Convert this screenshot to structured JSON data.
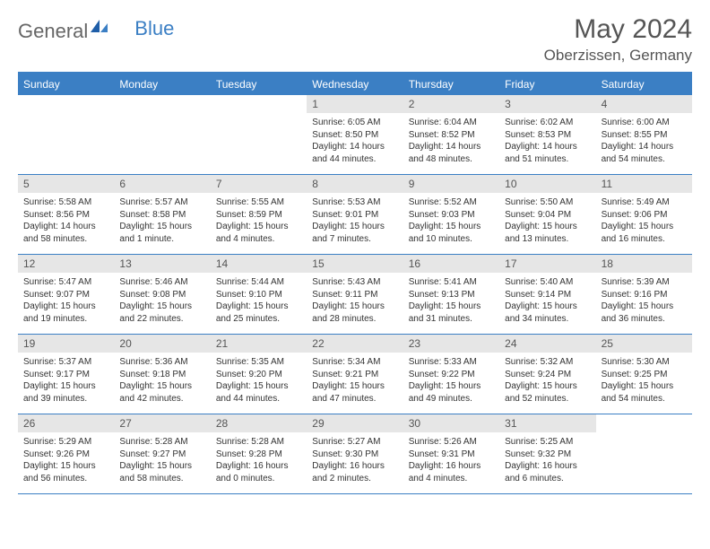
{
  "brand": {
    "part1": "General",
    "part2": "Blue"
  },
  "title": "May 2024",
  "location": "Oberzissen, Germany",
  "colors": {
    "accent": "#3b7fc4",
    "header_bg": "#3b7fc4",
    "daynum_bg": "#e6e6e6",
    "text": "#333333",
    "muted": "#555555",
    "bg": "#ffffff"
  },
  "day_names": [
    "Sunday",
    "Monday",
    "Tuesday",
    "Wednesday",
    "Thursday",
    "Friday",
    "Saturday"
  ],
  "weeks": [
    [
      {
        "n": "",
        "sr": "",
        "ss": "",
        "dl": ""
      },
      {
        "n": "",
        "sr": "",
        "ss": "",
        "dl": ""
      },
      {
        "n": "",
        "sr": "",
        "ss": "",
        "dl": ""
      },
      {
        "n": "1",
        "sr": "Sunrise: 6:05 AM",
        "ss": "Sunset: 8:50 PM",
        "dl": "Daylight: 14 hours and 44 minutes."
      },
      {
        "n": "2",
        "sr": "Sunrise: 6:04 AM",
        "ss": "Sunset: 8:52 PM",
        "dl": "Daylight: 14 hours and 48 minutes."
      },
      {
        "n": "3",
        "sr": "Sunrise: 6:02 AM",
        "ss": "Sunset: 8:53 PM",
        "dl": "Daylight: 14 hours and 51 minutes."
      },
      {
        "n": "4",
        "sr": "Sunrise: 6:00 AM",
        "ss": "Sunset: 8:55 PM",
        "dl": "Daylight: 14 hours and 54 minutes."
      }
    ],
    [
      {
        "n": "5",
        "sr": "Sunrise: 5:58 AM",
        "ss": "Sunset: 8:56 PM",
        "dl": "Daylight: 14 hours and 58 minutes."
      },
      {
        "n": "6",
        "sr": "Sunrise: 5:57 AM",
        "ss": "Sunset: 8:58 PM",
        "dl": "Daylight: 15 hours and 1 minute."
      },
      {
        "n": "7",
        "sr": "Sunrise: 5:55 AM",
        "ss": "Sunset: 8:59 PM",
        "dl": "Daylight: 15 hours and 4 minutes."
      },
      {
        "n": "8",
        "sr": "Sunrise: 5:53 AM",
        "ss": "Sunset: 9:01 PM",
        "dl": "Daylight: 15 hours and 7 minutes."
      },
      {
        "n": "9",
        "sr": "Sunrise: 5:52 AM",
        "ss": "Sunset: 9:03 PM",
        "dl": "Daylight: 15 hours and 10 minutes."
      },
      {
        "n": "10",
        "sr": "Sunrise: 5:50 AM",
        "ss": "Sunset: 9:04 PM",
        "dl": "Daylight: 15 hours and 13 minutes."
      },
      {
        "n": "11",
        "sr": "Sunrise: 5:49 AM",
        "ss": "Sunset: 9:06 PM",
        "dl": "Daylight: 15 hours and 16 minutes."
      }
    ],
    [
      {
        "n": "12",
        "sr": "Sunrise: 5:47 AM",
        "ss": "Sunset: 9:07 PM",
        "dl": "Daylight: 15 hours and 19 minutes."
      },
      {
        "n": "13",
        "sr": "Sunrise: 5:46 AM",
        "ss": "Sunset: 9:08 PM",
        "dl": "Daylight: 15 hours and 22 minutes."
      },
      {
        "n": "14",
        "sr": "Sunrise: 5:44 AM",
        "ss": "Sunset: 9:10 PM",
        "dl": "Daylight: 15 hours and 25 minutes."
      },
      {
        "n": "15",
        "sr": "Sunrise: 5:43 AM",
        "ss": "Sunset: 9:11 PM",
        "dl": "Daylight: 15 hours and 28 minutes."
      },
      {
        "n": "16",
        "sr": "Sunrise: 5:41 AM",
        "ss": "Sunset: 9:13 PM",
        "dl": "Daylight: 15 hours and 31 minutes."
      },
      {
        "n": "17",
        "sr": "Sunrise: 5:40 AM",
        "ss": "Sunset: 9:14 PM",
        "dl": "Daylight: 15 hours and 34 minutes."
      },
      {
        "n": "18",
        "sr": "Sunrise: 5:39 AM",
        "ss": "Sunset: 9:16 PM",
        "dl": "Daylight: 15 hours and 36 minutes."
      }
    ],
    [
      {
        "n": "19",
        "sr": "Sunrise: 5:37 AM",
        "ss": "Sunset: 9:17 PM",
        "dl": "Daylight: 15 hours and 39 minutes."
      },
      {
        "n": "20",
        "sr": "Sunrise: 5:36 AM",
        "ss": "Sunset: 9:18 PM",
        "dl": "Daylight: 15 hours and 42 minutes."
      },
      {
        "n": "21",
        "sr": "Sunrise: 5:35 AM",
        "ss": "Sunset: 9:20 PM",
        "dl": "Daylight: 15 hours and 44 minutes."
      },
      {
        "n": "22",
        "sr": "Sunrise: 5:34 AM",
        "ss": "Sunset: 9:21 PM",
        "dl": "Daylight: 15 hours and 47 minutes."
      },
      {
        "n": "23",
        "sr": "Sunrise: 5:33 AM",
        "ss": "Sunset: 9:22 PM",
        "dl": "Daylight: 15 hours and 49 minutes."
      },
      {
        "n": "24",
        "sr": "Sunrise: 5:32 AM",
        "ss": "Sunset: 9:24 PM",
        "dl": "Daylight: 15 hours and 52 minutes."
      },
      {
        "n": "25",
        "sr": "Sunrise: 5:30 AM",
        "ss": "Sunset: 9:25 PM",
        "dl": "Daylight: 15 hours and 54 minutes."
      }
    ],
    [
      {
        "n": "26",
        "sr": "Sunrise: 5:29 AM",
        "ss": "Sunset: 9:26 PM",
        "dl": "Daylight: 15 hours and 56 minutes."
      },
      {
        "n": "27",
        "sr": "Sunrise: 5:28 AM",
        "ss": "Sunset: 9:27 PM",
        "dl": "Daylight: 15 hours and 58 minutes."
      },
      {
        "n": "28",
        "sr": "Sunrise: 5:28 AM",
        "ss": "Sunset: 9:28 PM",
        "dl": "Daylight: 16 hours and 0 minutes."
      },
      {
        "n": "29",
        "sr": "Sunrise: 5:27 AM",
        "ss": "Sunset: 9:30 PM",
        "dl": "Daylight: 16 hours and 2 minutes."
      },
      {
        "n": "30",
        "sr": "Sunrise: 5:26 AM",
        "ss": "Sunset: 9:31 PM",
        "dl": "Daylight: 16 hours and 4 minutes."
      },
      {
        "n": "31",
        "sr": "Sunrise: 5:25 AM",
        "ss": "Sunset: 9:32 PM",
        "dl": "Daylight: 16 hours and 6 minutes."
      },
      {
        "n": "",
        "sr": "",
        "ss": "",
        "dl": ""
      }
    ]
  ]
}
